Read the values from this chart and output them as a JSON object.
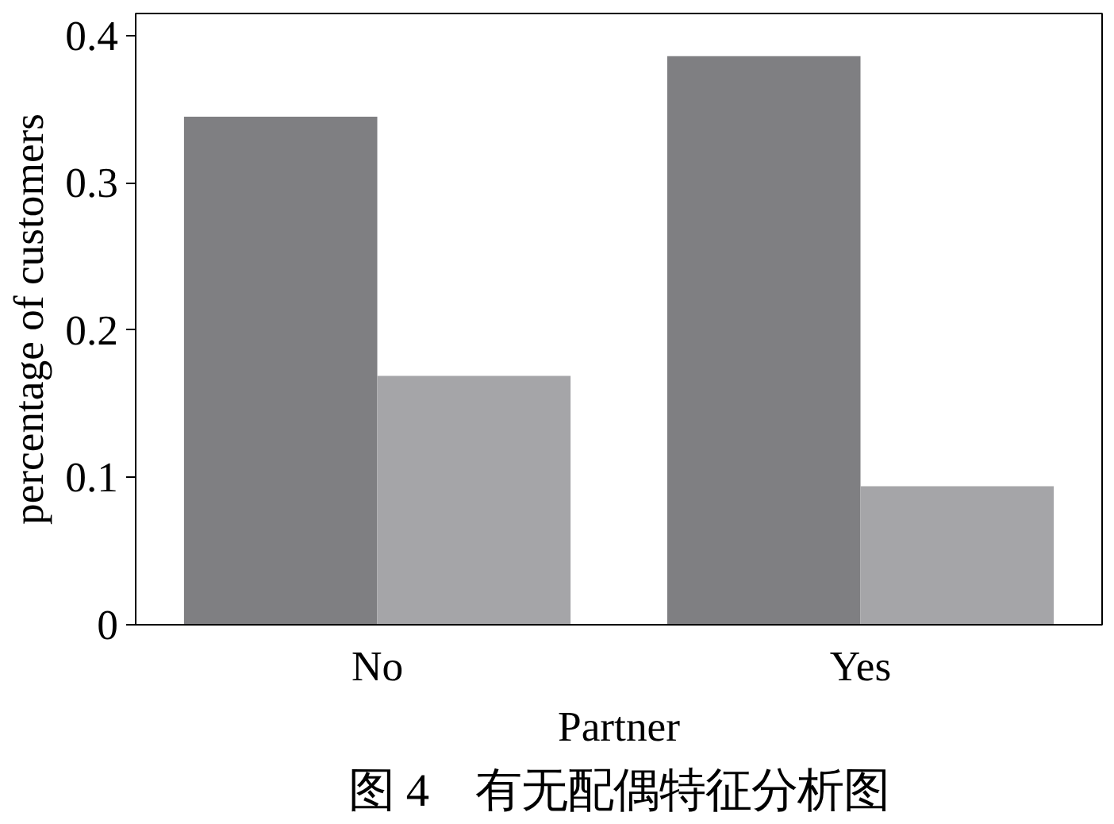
{
  "chart_data": {
    "type": "bar",
    "title": "图 4　有无配偶特征分析图",
    "xlabel": "Partner",
    "ylabel": "percentage of customers",
    "categories": [
      "No",
      "Yes"
    ],
    "series": [
      {
        "color": "#7f7f82",
        "values": [
          0.345,
          0.386
        ]
      },
      {
        "color": "#a5a5a8",
        "values": [
          0.169,
          0.094
        ]
      }
    ],
    "ylim": [
      0,
      0.415
    ],
    "yticks": [
      {
        "value": 0,
        "label": "0"
      },
      0.1,
      0.2,
      0.3,
      0.4
    ],
    "grid": false
  }
}
